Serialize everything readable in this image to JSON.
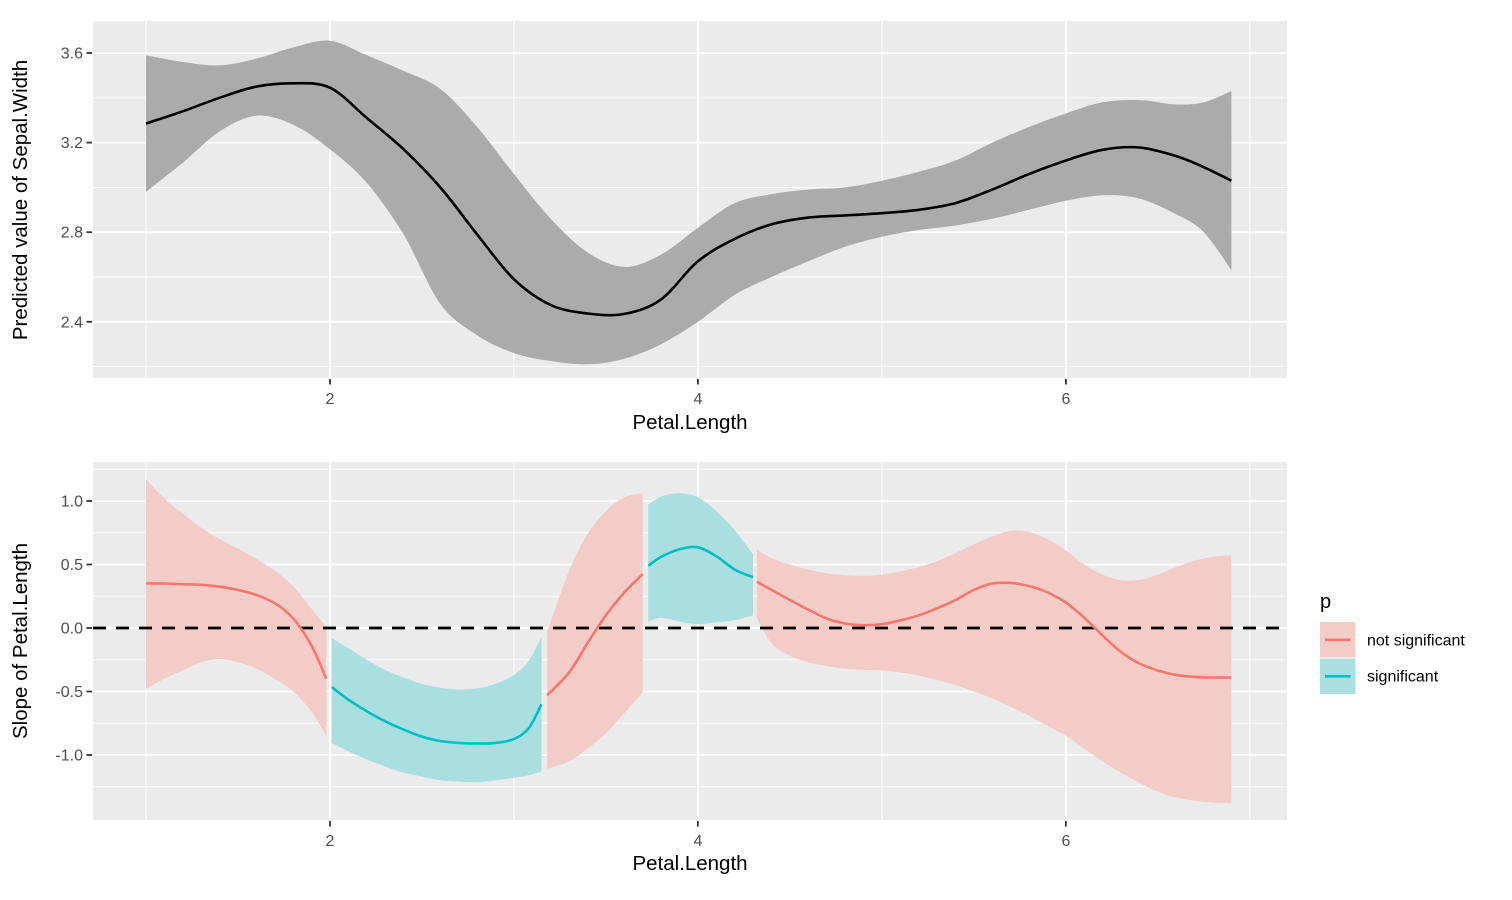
{
  "legend": {
    "title": "p",
    "position": "right",
    "items": [
      {
        "label": "not significant",
        "line": "#F8766D",
        "fill": "#F3CCC8"
      },
      {
        "label": "significant",
        "line": "#00BFC4",
        "fill": "#A9DFE1"
      }
    ]
  },
  "colors": {
    "panel_bg": "#EBEBEB",
    "grid": "#FFFFFF",
    "tick": "#333333",
    "tick_label": "#4D4D4D",
    "zero_line": "#000000",
    "gray_ribbon": "#ABABAB",
    "black_line": "#000000",
    "red_line": "#F8766D",
    "teal_line": "#00BFC4",
    "red_fill": "#F3CCC8",
    "teal_fill": "#A9DFE1"
  },
  "chart_data": [
    {
      "type": "line",
      "title": "",
      "xlabel": "Petal.Length",
      "ylabel": "Predicted value of Sepal.Width",
      "xlim": [
        0.712,
        7.202
      ],
      "ylim": [
        2.149,
        3.743
      ],
      "grid": true,
      "zero_line": false,
      "x_major": [
        2,
        4,
        6
      ],
      "x_tick_labels": [
        "2",
        "4",
        "6"
      ],
      "x_minor": [
        1,
        3,
        5,
        7
      ],
      "y_major": [
        2.4,
        2.8,
        3.2,
        3.6
      ],
      "y_tick_labels": [
        "2.4",
        "2.8",
        "3.2",
        "3.6"
      ],
      "y_minor": [
        2.2,
        2.6,
        3.0,
        3.4
      ],
      "series": [
        {
          "name": "fit",
          "color": "#000000",
          "fill": "#ABABAB",
          "note": "points are [x, fit, ci_low, ci_high]",
          "points": [
            [
              1.0,
              3.285,
              2.98,
              3.59
            ],
            [
              1.2,
              3.34,
              3.11,
              3.56
            ],
            [
              1.4,
              3.4,
              3.25,
              3.545
            ],
            [
              1.6,
              3.45,
              3.32,
              3.575
            ],
            [
              1.8,
              3.465,
              3.28,
              3.625
            ],
            [
              2.0,
              3.445,
              3.17,
              3.655
            ],
            [
              2.2,
              3.31,
              3.02,
              3.59
            ],
            [
              2.4,
              3.17,
              2.79,
              3.52
            ],
            [
              2.6,
              3.0,
              2.48,
              3.44
            ],
            [
              2.8,
              2.79,
              2.34,
              3.27
            ],
            [
              3.0,
              2.59,
              2.26,
              3.06
            ],
            [
              3.2,
              2.475,
              2.225,
              2.86
            ],
            [
              3.4,
              2.437,
              2.21,
              2.71
            ],
            [
              3.6,
              2.435,
              2.235,
              2.645
            ],
            [
              3.8,
              2.5,
              2.3,
              2.7
            ],
            [
              4.0,
              2.67,
              2.4,
              2.82
            ],
            [
              4.2,
              2.77,
              2.52,
              2.93
            ],
            [
              4.4,
              2.835,
              2.6,
              2.97
            ],
            [
              4.6,
              2.865,
              2.67,
              2.99
            ],
            [
              4.8,
              2.875,
              2.735,
              3.0
            ],
            [
              5.0,
              2.885,
              2.78,
              3.03
            ],
            [
              5.2,
              2.9,
              2.81,
              3.07
            ],
            [
              5.4,
              2.93,
              2.83,
              3.12
            ],
            [
              5.6,
              2.99,
              2.86,
              3.2
            ],
            [
              5.8,
              3.06,
              2.9,
              3.27
            ],
            [
              6.0,
              3.12,
              2.94,
              3.33
            ],
            [
              6.2,
              3.168,
              2.965,
              3.38
            ],
            [
              6.4,
              3.178,
              2.95,
              3.39
            ],
            [
              6.6,
              3.14,
              2.88,
              3.37
            ],
            [
              6.75,
              3.09,
              2.8,
              3.38
            ],
            [
              6.9,
              3.03,
              2.63,
              3.43
            ]
          ]
        }
      ]
    },
    {
      "type": "line",
      "title": "",
      "xlabel": "Petal.Length",
      "ylabel": "Slope of Petal.Length",
      "xlim": [
        0.712,
        7.202
      ],
      "ylim": [
        -1.512,
        1.307
      ],
      "grid": true,
      "zero_line": true,
      "x_major": [
        2,
        4,
        6
      ],
      "x_tick_labels": [
        "2",
        "4",
        "6"
      ],
      "x_minor": [
        1,
        3,
        5,
        7
      ],
      "y_major": [
        1.0,
        0.5,
        0.0,
        -0.5,
        -1.0
      ],
      "y_tick_labels": [
        "1.0",
        "0.5",
        "0.0",
        "-0.5",
        "-1.0"
      ],
      "y_minor": [
        1.25,
        0.75,
        0.25,
        -0.25,
        -0.75,
        -1.25
      ],
      "series": [
        {
          "name": "not significant",
          "color": "#F8766D",
          "fill": "#F3CCC8",
          "points": [
            [
              1.0,
              0.35,
              -0.48,
              1.17
            ],
            [
              1.1,
              0.35,
              -0.4,
              1.02
            ],
            [
              1.2,
              0.345,
              -0.335,
              0.9
            ],
            [
              1.3,
              0.34,
              -0.27,
              0.79
            ],
            [
              1.4,
              0.325,
              -0.245,
              0.7
            ],
            [
              1.5,
              0.3,
              -0.27,
              0.625
            ],
            [
              1.6,
              0.26,
              -0.32,
              0.545
            ],
            [
              1.7,
              0.195,
              -0.4,
              0.45
            ],
            [
              1.8,
              0.075,
              -0.5,
              0.33
            ],
            [
              1.9,
              -0.14,
              -0.66,
              0.15
            ],
            [
              1.98,
              -0.4,
              -0.85,
              0.01
            ]
          ]
        },
        {
          "name": "significant",
          "color": "#00BFC4",
          "fill": "#A9DFE1",
          "points": [
            [
              2.01,
              -0.465,
              -0.905,
              -0.08
            ],
            [
              2.1,
              -0.565,
              -0.97,
              -0.16
            ],
            [
              2.2,
              -0.655,
              -1.035,
              -0.25
            ],
            [
              2.3,
              -0.735,
              -1.09,
              -0.33
            ],
            [
              2.4,
              -0.8,
              -1.14,
              -0.39
            ],
            [
              2.5,
              -0.855,
              -1.17,
              -0.44
            ],
            [
              2.6,
              -0.89,
              -1.2,
              -0.47
            ],
            [
              2.7,
              -0.905,
              -1.21,
              -0.485
            ],
            [
              2.8,
              -0.91,
              -1.215,
              -0.475
            ],
            [
              2.9,
              -0.905,
              -1.2,
              -0.44
            ],
            [
              3.0,
              -0.875,
              -1.18,
              -0.37
            ],
            [
              3.08,
              -0.79,
              -1.16,
              -0.26
            ],
            [
              3.15,
              -0.6,
              -1.13,
              -0.07
            ]
          ]
        },
        {
          "name": "not significant",
          "color": "#F8766D",
          "fill": "#F3CCC8",
          "points": [
            [
              3.18,
              -0.53,
              -1.11,
              -0.03
            ],
            [
              3.3,
              -0.35,
              -1.05,
              0.45
            ],
            [
              3.4,
              -0.12,
              -0.95,
              0.74
            ],
            [
              3.5,
              0.1,
              -0.83,
              0.92
            ],
            [
              3.6,
              0.28,
              -0.67,
              1.03
            ],
            [
              3.7,
              0.425,
              -0.51,
              1.06
            ]
          ]
        },
        {
          "name": "significant",
          "color": "#00BFC4",
          "fill": "#A9DFE1",
          "points": [
            [
              3.73,
              0.49,
              0.05,
              0.97
            ],
            [
              3.8,
              0.56,
              0.08,
              1.035
            ],
            [
              3.9,
              0.62,
              0.05,
              1.06
            ],
            [
              4.0,
              0.635,
              0.03,
              1.03
            ],
            [
              4.1,
              0.565,
              0.045,
              0.92
            ],
            [
              4.2,
              0.46,
              0.06,
              0.77
            ],
            [
              4.3,
              0.4,
              0.1,
              0.58
            ]
          ]
        },
        {
          "name": "not significant",
          "color": "#F8766D",
          "fill": "#F3CCC8",
          "points": [
            [
              4.32,
              0.365,
              0.08,
              0.62
            ],
            [
              4.4,
              0.3,
              -0.12,
              0.55
            ],
            [
              4.5,
              0.22,
              -0.22,
              0.5
            ],
            [
              4.6,
              0.145,
              -0.27,
              0.46
            ],
            [
              4.7,
              0.075,
              -0.3,
              0.43
            ],
            [
              4.8,
              0.035,
              -0.32,
              0.415
            ],
            [
              4.9,
              0.022,
              -0.33,
              0.41
            ],
            [
              5.0,
              0.03,
              -0.335,
              0.42
            ],
            [
              5.1,
              0.06,
              -0.35,
              0.445
            ],
            [
              5.2,
              0.1,
              -0.375,
              0.48
            ],
            [
              5.3,
              0.155,
              -0.41,
              0.525
            ],
            [
              5.4,
              0.22,
              -0.45,
              0.59
            ],
            [
              5.5,
              0.3,
              -0.5,
              0.66
            ],
            [
              5.6,
              0.35,
              -0.555,
              0.72
            ],
            [
              5.7,
              0.355,
              -0.62,
              0.765
            ],
            [
              5.8,
              0.33,
              -0.69,
              0.755
            ],
            [
              5.9,
              0.28,
              -0.77,
              0.7
            ],
            [
              6.0,
              0.2,
              -0.85,
              0.61
            ],
            [
              6.1,
              0.08,
              -0.95,
              0.5
            ],
            [
              6.2,
              -0.06,
              -1.05,
              0.42
            ],
            [
              6.3,
              -0.19,
              -1.14,
              0.375
            ],
            [
              6.4,
              -0.28,
              -1.22,
              0.38
            ],
            [
              6.5,
              -0.335,
              -1.29,
              0.42
            ],
            [
              6.6,
              -0.37,
              -1.335,
              0.48
            ],
            [
              6.7,
              -0.385,
              -1.36,
              0.53
            ],
            [
              6.8,
              -0.39,
              -1.375,
              0.56
            ],
            [
              6.9,
              -0.39,
              -1.38,
              0.575
            ]
          ]
        }
      ]
    }
  ]
}
